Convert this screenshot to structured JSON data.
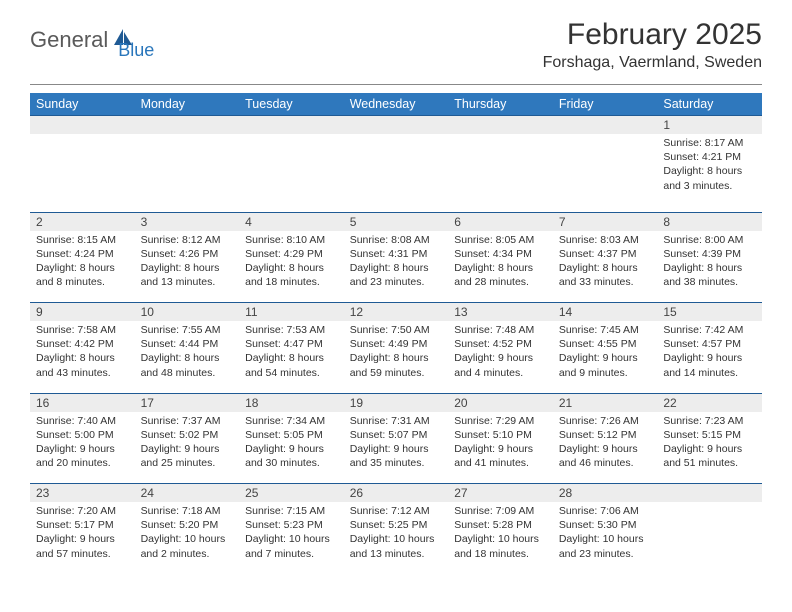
{
  "brand": {
    "part1": "General",
    "part2": "Blue",
    "logo_color": "#1f5a94"
  },
  "title": {
    "month_year": "February 2025",
    "location": "Forshaga, Vaermland, Sweden"
  },
  "colors": {
    "header_bg": "#2f78bd",
    "header_text": "#ffffff",
    "daynum_bg": "#ededed",
    "rule": "#1f5a94",
    "body_text": "#333333"
  },
  "day_names": [
    "Sunday",
    "Monday",
    "Tuesday",
    "Wednesday",
    "Thursday",
    "Friday",
    "Saturday"
  ],
  "weeks": [
    [
      null,
      null,
      null,
      null,
      null,
      null,
      {
        "n": "1",
        "sr": "Sunrise: 8:17 AM",
        "ss": "Sunset: 4:21 PM",
        "dl": "Daylight: 8 hours and 3 minutes."
      }
    ],
    [
      {
        "n": "2",
        "sr": "Sunrise: 8:15 AM",
        "ss": "Sunset: 4:24 PM",
        "dl": "Daylight: 8 hours and 8 minutes."
      },
      {
        "n": "3",
        "sr": "Sunrise: 8:12 AM",
        "ss": "Sunset: 4:26 PM",
        "dl": "Daylight: 8 hours and 13 minutes."
      },
      {
        "n": "4",
        "sr": "Sunrise: 8:10 AM",
        "ss": "Sunset: 4:29 PM",
        "dl": "Daylight: 8 hours and 18 minutes."
      },
      {
        "n": "5",
        "sr": "Sunrise: 8:08 AM",
        "ss": "Sunset: 4:31 PM",
        "dl": "Daylight: 8 hours and 23 minutes."
      },
      {
        "n": "6",
        "sr": "Sunrise: 8:05 AM",
        "ss": "Sunset: 4:34 PM",
        "dl": "Daylight: 8 hours and 28 minutes."
      },
      {
        "n": "7",
        "sr": "Sunrise: 8:03 AM",
        "ss": "Sunset: 4:37 PM",
        "dl": "Daylight: 8 hours and 33 minutes."
      },
      {
        "n": "8",
        "sr": "Sunrise: 8:00 AM",
        "ss": "Sunset: 4:39 PM",
        "dl": "Daylight: 8 hours and 38 minutes."
      }
    ],
    [
      {
        "n": "9",
        "sr": "Sunrise: 7:58 AM",
        "ss": "Sunset: 4:42 PM",
        "dl": "Daylight: 8 hours and 43 minutes."
      },
      {
        "n": "10",
        "sr": "Sunrise: 7:55 AM",
        "ss": "Sunset: 4:44 PM",
        "dl": "Daylight: 8 hours and 48 minutes."
      },
      {
        "n": "11",
        "sr": "Sunrise: 7:53 AM",
        "ss": "Sunset: 4:47 PM",
        "dl": "Daylight: 8 hours and 54 minutes."
      },
      {
        "n": "12",
        "sr": "Sunrise: 7:50 AM",
        "ss": "Sunset: 4:49 PM",
        "dl": "Daylight: 8 hours and 59 minutes."
      },
      {
        "n": "13",
        "sr": "Sunrise: 7:48 AM",
        "ss": "Sunset: 4:52 PM",
        "dl": "Daylight: 9 hours and 4 minutes."
      },
      {
        "n": "14",
        "sr": "Sunrise: 7:45 AM",
        "ss": "Sunset: 4:55 PM",
        "dl": "Daylight: 9 hours and 9 minutes."
      },
      {
        "n": "15",
        "sr": "Sunrise: 7:42 AM",
        "ss": "Sunset: 4:57 PM",
        "dl": "Daylight: 9 hours and 14 minutes."
      }
    ],
    [
      {
        "n": "16",
        "sr": "Sunrise: 7:40 AM",
        "ss": "Sunset: 5:00 PM",
        "dl": "Daylight: 9 hours and 20 minutes."
      },
      {
        "n": "17",
        "sr": "Sunrise: 7:37 AM",
        "ss": "Sunset: 5:02 PM",
        "dl": "Daylight: 9 hours and 25 minutes."
      },
      {
        "n": "18",
        "sr": "Sunrise: 7:34 AM",
        "ss": "Sunset: 5:05 PM",
        "dl": "Daylight: 9 hours and 30 minutes."
      },
      {
        "n": "19",
        "sr": "Sunrise: 7:31 AM",
        "ss": "Sunset: 5:07 PM",
        "dl": "Daylight: 9 hours and 35 minutes."
      },
      {
        "n": "20",
        "sr": "Sunrise: 7:29 AM",
        "ss": "Sunset: 5:10 PM",
        "dl": "Daylight: 9 hours and 41 minutes."
      },
      {
        "n": "21",
        "sr": "Sunrise: 7:26 AM",
        "ss": "Sunset: 5:12 PM",
        "dl": "Daylight: 9 hours and 46 minutes."
      },
      {
        "n": "22",
        "sr": "Sunrise: 7:23 AM",
        "ss": "Sunset: 5:15 PM",
        "dl": "Daylight: 9 hours and 51 minutes."
      }
    ],
    [
      {
        "n": "23",
        "sr": "Sunrise: 7:20 AM",
        "ss": "Sunset: 5:17 PM",
        "dl": "Daylight: 9 hours and 57 minutes."
      },
      {
        "n": "24",
        "sr": "Sunrise: 7:18 AM",
        "ss": "Sunset: 5:20 PM",
        "dl": "Daylight: 10 hours and 2 minutes."
      },
      {
        "n": "25",
        "sr": "Sunrise: 7:15 AM",
        "ss": "Sunset: 5:23 PM",
        "dl": "Daylight: 10 hours and 7 minutes."
      },
      {
        "n": "26",
        "sr": "Sunrise: 7:12 AM",
        "ss": "Sunset: 5:25 PM",
        "dl": "Daylight: 10 hours and 13 minutes."
      },
      {
        "n": "27",
        "sr": "Sunrise: 7:09 AM",
        "ss": "Sunset: 5:28 PM",
        "dl": "Daylight: 10 hours and 18 minutes."
      },
      {
        "n": "28",
        "sr": "Sunrise: 7:06 AM",
        "ss": "Sunset: 5:30 PM",
        "dl": "Daylight: 10 hours and 23 minutes."
      },
      null
    ]
  ]
}
